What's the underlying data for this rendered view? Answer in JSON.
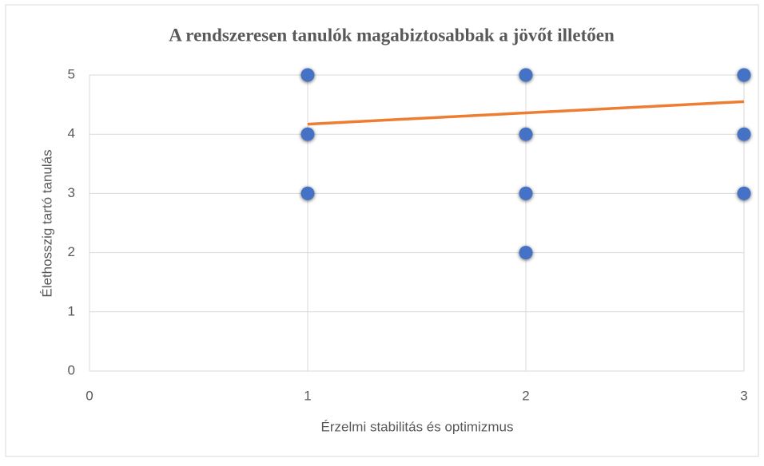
{
  "chart_data": {
    "type": "scatter",
    "title": "A rendszeresen tanulók magabiztosabbak a jövőt illetően",
    "x_label": "Érzelmi stabilitás és optimizmus",
    "y_label": "Élethosszig tartó tanulás",
    "series": [
      {
        "color": "#4472c4",
        "x": [
          1,
          1,
          1,
          2,
          2,
          2,
          2,
          3,
          3,
          3
        ],
        "values": [
          5,
          4,
          3,
          5,
          4,
          3,
          2,
          5,
          4,
          3
        ]
      }
    ],
    "trendline": {
      "color": "#ed7d31",
      "x": [
        1,
        3
      ],
      "values": [
        4.17,
        4.55
      ]
    },
    "xlim": [
      0,
      3
    ],
    "xticks": [
      0,
      1,
      2,
      3
    ],
    "ylim": [
      0,
      5
    ],
    "yticks": [
      0,
      1,
      2,
      3,
      4,
      5
    ],
    "grid": true
  }
}
